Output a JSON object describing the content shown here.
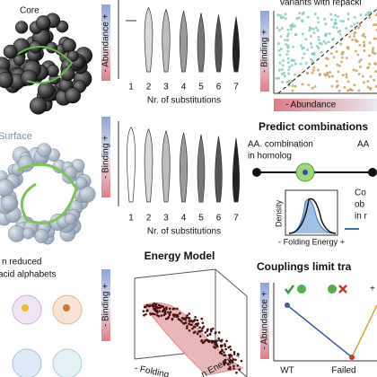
{
  "left": {
    "core_label": "Core",
    "surface_label": "Surface",
    "alphabet_lines": [
      "n reduced",
      "acid alphabets"
    ]
  },
  "abundance_panel": {
    "y_label": "- Abundance +",
    "categories": [
      "1",
      "2",
      "3",
      "4",
      "5",
      "6",
      "7"
    ],
    "x_label": "Nr. of substitutions"
  },
  "binding_panel": {
    "y_label": "- Binding +",
    "categories": [
      "1",
      "2",
      "3",
      "4",
      "5",
      "6",
      "7"
    ],
    "x_label": "Nr. of substitutions"
  },
  "energy_model": {
    "title": "Energy Model",
    "x_label": "- Folding",
    "z_label": "n Energy +",
    "y_label": "- Binding +"
  },
  "repacking_panel": {
    "title": "variants with repacki",
    "y_label": "- Binding +",
    "x_label": "- Abundance"
  },
  "predict_panel": {
    "title": "Predict combinations",
    "left_lines": [
      "AA. combination",
      "in homolog"
    ],
    "right_label": "AA",
    "density_label": "Density",
    "x_label": "- Folding Energy +",
    "legend_lines": [
      "Co",
      "ob",
      "in r"
    ]
  },
  "couplings_panel": {
    "title": "Couplings limit tra",
    "y_label": "- Abundance +",
    "categories": [
      "WT",
      "Failed"
    ],
    "plus": "+"
  }
}
